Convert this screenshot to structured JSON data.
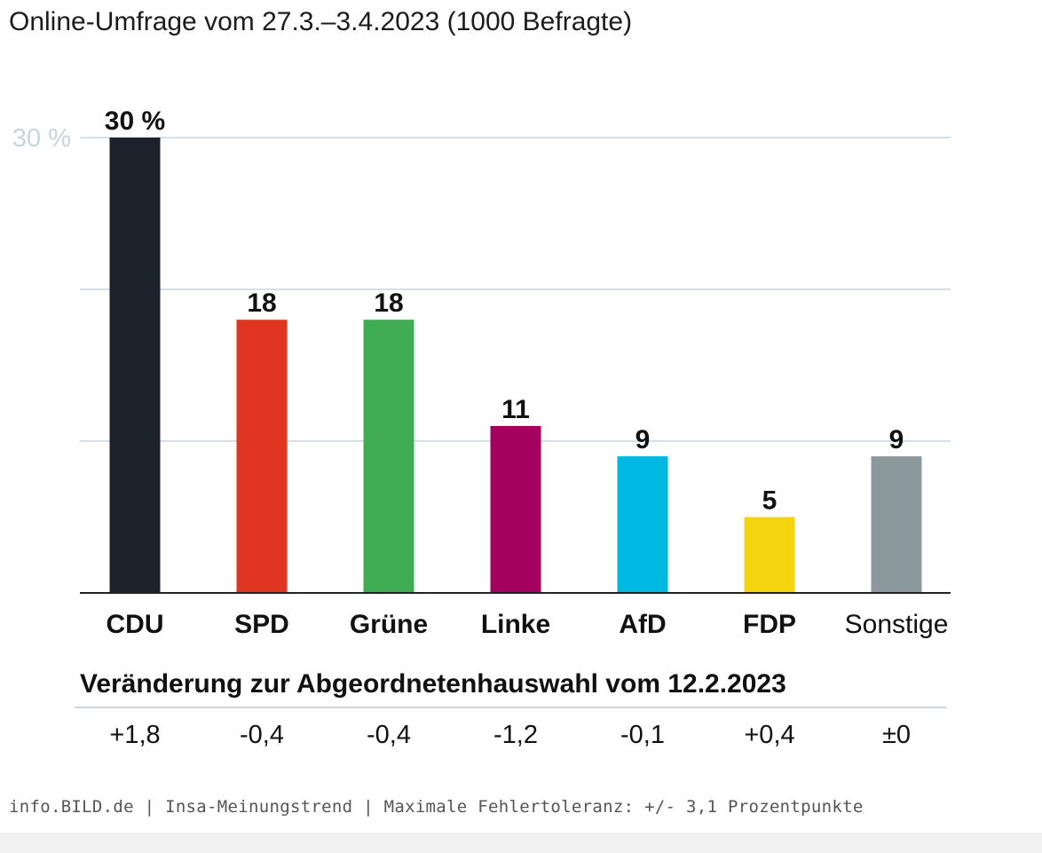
{
  "subtitle": "Online-Umfrage vom 27.3.–3.4.2023 (1000 Befragte)",
  "chart_data": {
    "type": "bar",
    "categories": [
      "CDU",
      "SPD",
      "Grüne",
      "Linke",
      "AfD",
      "FDP",
      "Sonstige"
    ],
    "values": [
      30,
      18,
      18,
      11,
      9,
      5,
      9
    ],
    "value_labels": [
      "30 %",
      "18",
      "18",
      "11",
      "9",
      "5",
      "9"
    ],
    "colors": [
      "#1b222b",
      "#e03521",
      "#3fac53",
      "#a3005f",
      "#00b9e3",
      "#f4d30f",
      "#8b999d"
    ],
    "bold_categories": [
      true,
      true,
      true,
      true,
      true,
      true,
      false
    ],
    "ylim": [
      0,
      30
    ],
    "yticks": [
      0,
      10,
      20,
      30
    ],
    "ytick_labels": [
      "",
      "",
      "",
      "30 %"
    ],
    "grid": true,
    "axis_color": "#222222",
    "grid_color": "#c9d3dd",
    "tick_label_color": "#c9d3dd"
  },
  "change": {
    "title": "Veränderung zur Abgeordnetenhauswahl vom 12.2.2023",
    "values": [
      "+1,8",
      "-0,4",
      "-0,4",
      "-1,2",
      "-0,1",
      "+0,4",
      "±0"
    ]
  },
  "footer": "info.BILD.de | Insa-Meinungstrend | Maximale Fehlertoleranz: +/- 3,1 Prozentpunkte"
}
